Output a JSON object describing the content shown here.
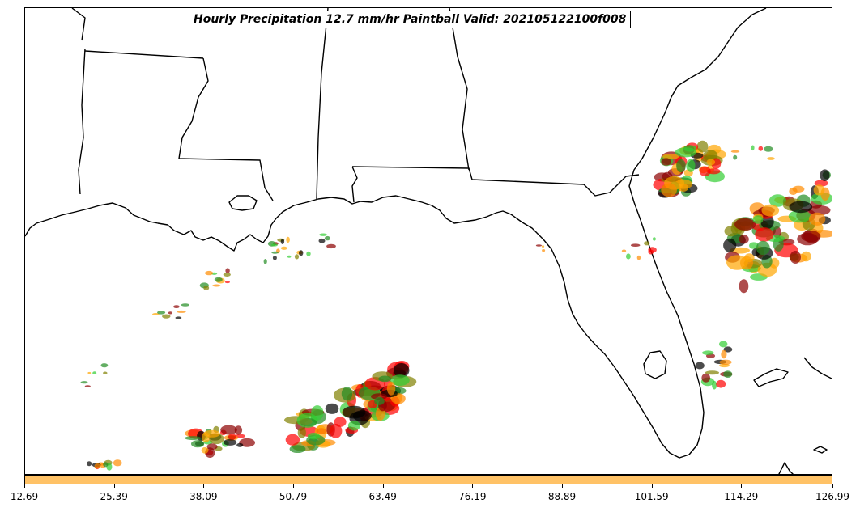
{
  "title": "Hourly Precipitation 12.7 mm/hr Paintball Valid: 202105122100f008",
  "colorbar": {
    "color": "#FFC266",
    "ticks": [
      "12.69",
      "25.39",
      "38.09",
      "50.79",
      "63.49",
      "76.19",
      "88.89",
      "101.59",
      "114.29",
      "126.99"
    ]
  },
  "member_colors": [
    "#8B0000",
    "#FF0000",
    "#FF8C00",
    "#FFA500",
    "#228B22",
    "#32CD32",
    "#808000",
    "#000000"
  ]
}
